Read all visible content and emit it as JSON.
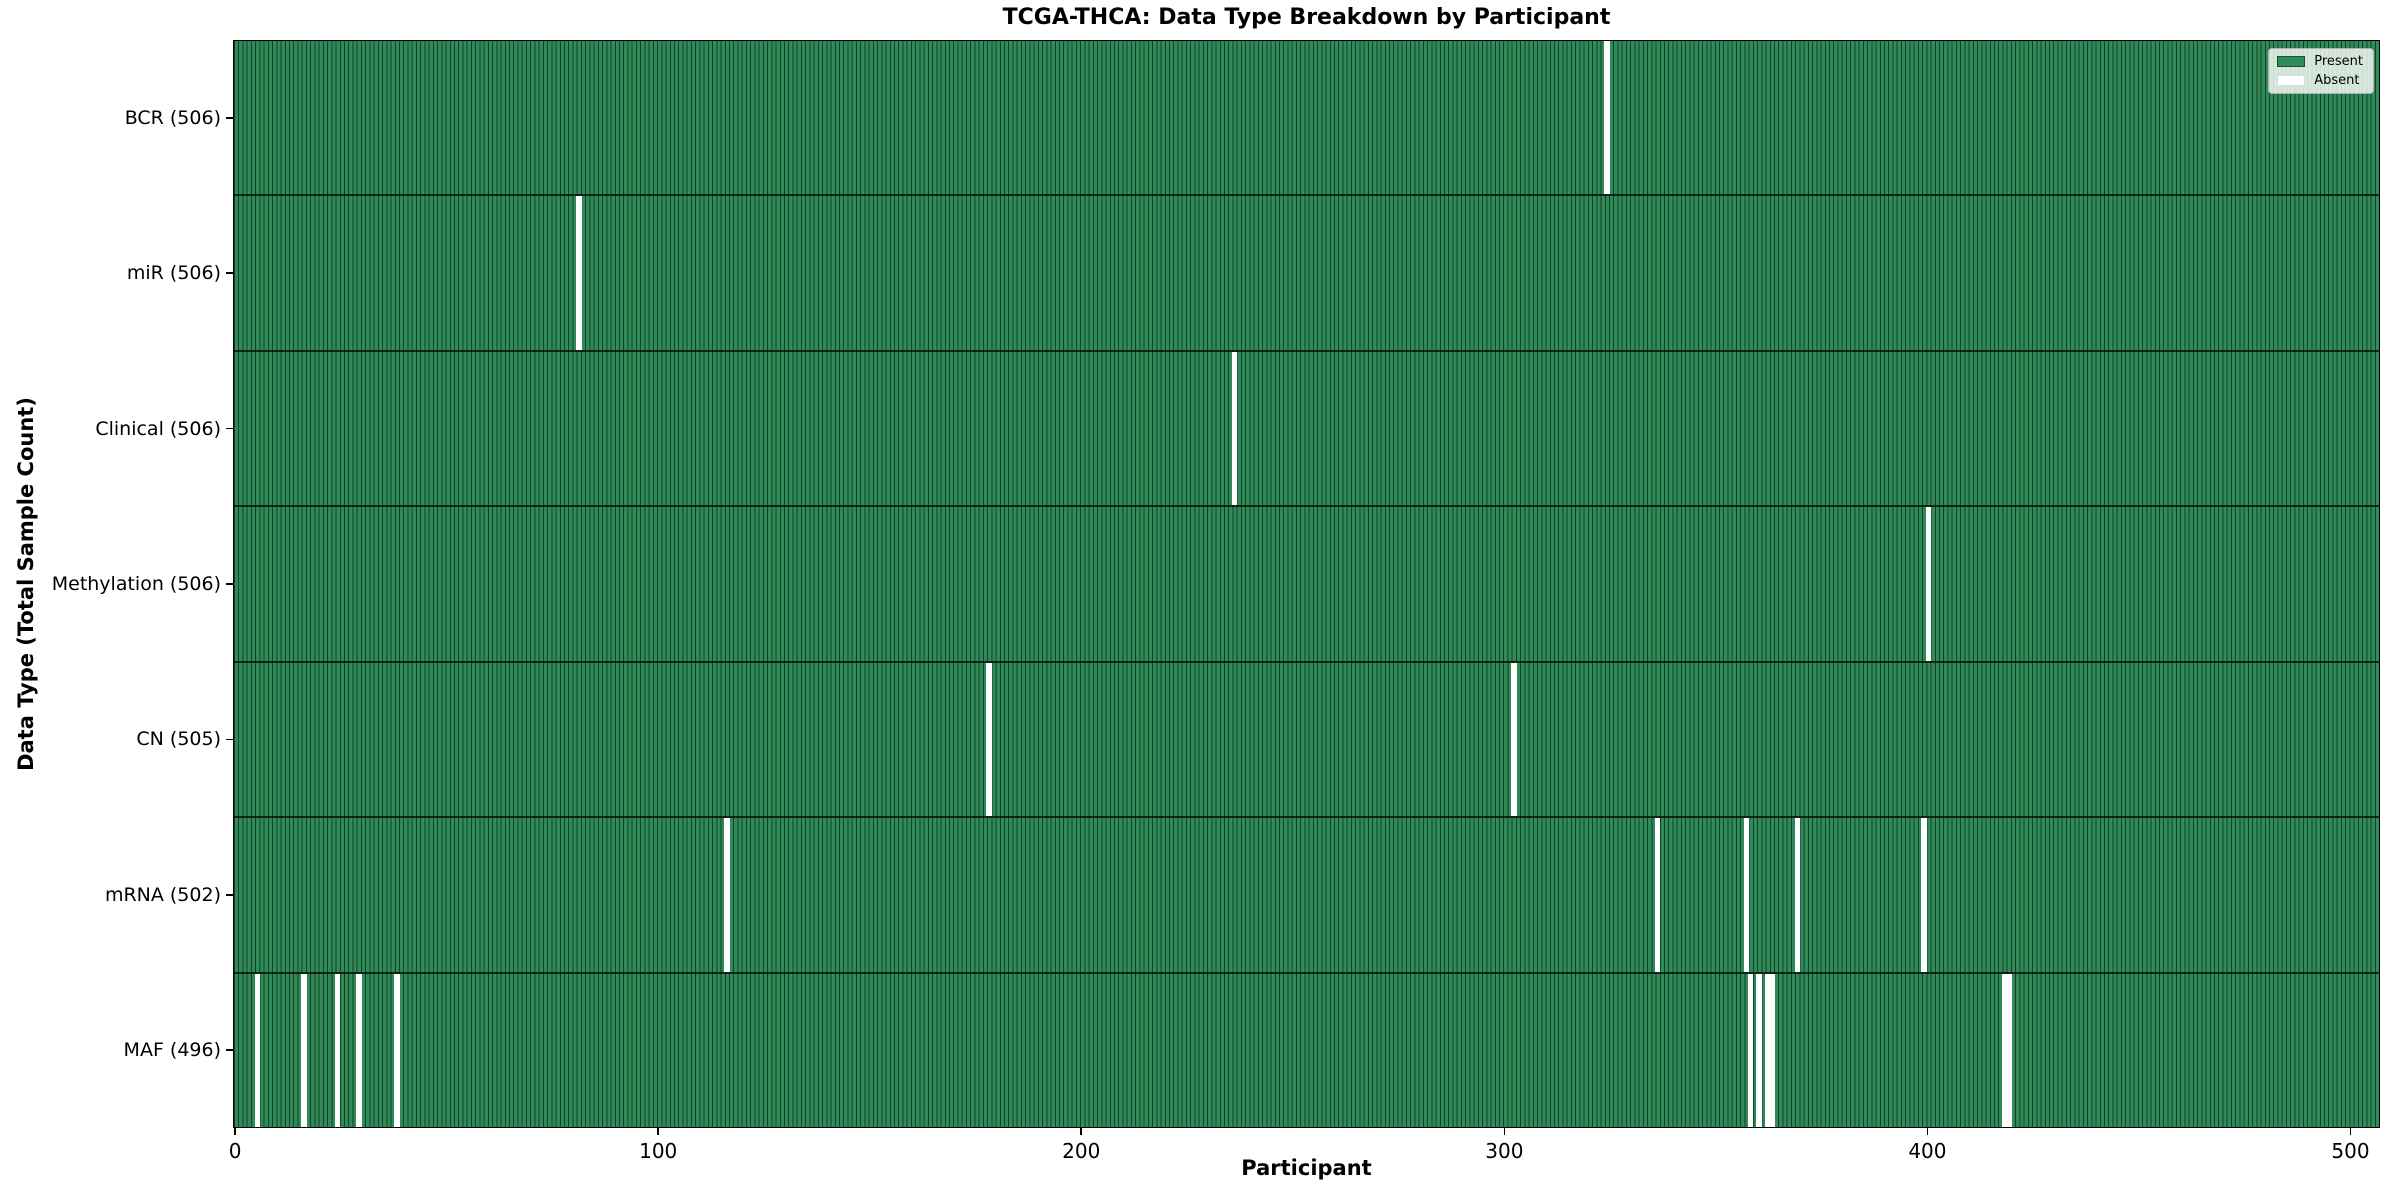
{
  "chart_data": {
    "type": "heatmap",
    "title": "TCGA-THCA: Data Type Breakdown by Participant",
    "xlabel": "Participant",
    "ylabel": "Data Type (Total Sample Count)",
    "x_ticks": [
      0,
      100,
      200,
      300,
      400,
      500
    ],
    "xlim": [
      -0.5,
      506.5
    ],
    "n_participants": 507,
    "grid": false,
    "legend": {
      "position": "upper right",
      "entries": [
        {
          "label": "Present",
          "color": "#2e8b57",
          "edge": "#1c4f32"
        },
        {
          "label": "Absent",
          "color": "#ffffff",
          "edge": "#d9d9d9"
        }
      ]
    },
    "colors": {
      "present": "#2e8b57",
      "absent": "#ffffff",
      "cell_edge": "rgba(0,0,0,0.55)",
      "row_border": "rgba(0,0,0,0.7)",
      "spine": "#000000"
    },
    "rows": [
      {
        "data_type": "BCR",
        "total_count": 506,
        "label": "BCR (506)",
        "absent_participants": [
          324
        ]
      },
      {
        "data_type": "miR",
        "total_count": 506,
        "label": "miR (506)",
        "absent_participants": [
          81
        ]
      },
      {
        "data_type": "Clinical",
        "total_count": 506,
        "label": "Clinical (506)",
        "absent_participants": [
          236
        ]
      },
      {
        "data_type": "Methylation",
        "total_count": 506,
        "label": "Methylation (506)",
        "absent_participants": [
          400
        ]
      },
      {
        "data_type": "CN",
        "total_count": 505,
        "label": "CN (505)",
        "absent_participants": [
          178,
          302
        ]
      },
      {
        "data_type": "mRNA",
        "total_count": 502,
        "label": "mRNA (502)",
        "absent_participants": [
          116,
          336,
          357,
          369,
          399
        ]
      },
      {
        "data_type": "MAF",
        "total_count": 496,
        "label": "MAF (496)",
        "absent_participants": [
          5,
          16,
          24,
          29,
          38,
          358,
          360,
          362,
          363,
          418,
          419
        ]
      }
    ]
  }
}
